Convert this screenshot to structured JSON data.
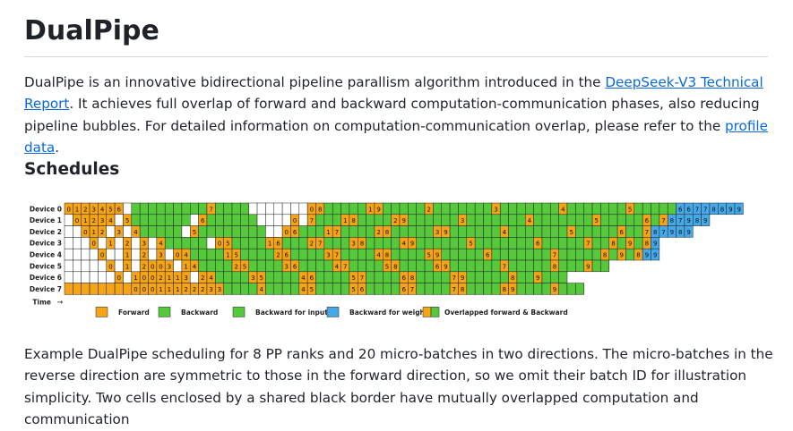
{
  "title": "DualPipe",
  "intro": {
    "text_before": "DualPipe is an innovative bidirectional pipeline parallism algorithm introduced in the ",
    "link_report": "DeepSeek-V3 Technical Report",
    "text_middle": ". It achieves full overlap of forward and backward computation-communication phases, also reducing pipeline bubbles. For detailed information on computation-communication overlap, please refer to the ",
    "link_profile": "profile data",
    "text_after": "."
  },
  "schedules_heading": "Schedules",
  "figure": {
    "devices": [
      "Device 0",
      "Device 1",
      "Device 2",
      "Device 3",
      "Device 4",
      "Device 5",
      "Device 6",
      "Device 7"
    ],
    "time_label": "Time",
    "time_arrow": "→",
    "legend": [
      {
        "label": "Forward",
        "kind": "F"
      },
      {
        "label": "Backward",
        "kind": "B"
      },
      {
        "label": "Backward for input",
        "kind": "I"
      },
      {
        "label": "Backward for weights",
        "kind": "W"
      },
      {
        "label": "Overlapped forward & Backward",
        "kind": "O"
      }
    ],
    "colors": {
      "F": "#f5a417",
      "B": "#55c93b",
      "I": "#55c93b",
      "W": "#45a8e8",
      "O": "#f5a417",
      "O2": "#55c93b",
      "empty": "#ffffff",
      "border": "#222222"
    },
    "schedule": [
      "F0 F1 F2 F3 F4 F5 F6 _ B B B B B B B B B F7 B B B B _ _ _ _ _ _ _ F0 F8 B B B B B F1 F9 B B B B B F2 B B B B B B B F3 B B B B B B B F4 B B B B B B B F5 B B B B B W6 W6 W7 W7 W8 W8 W9 W9",
      "_ F0 F1 F2 F3 F4 _ F5 B B B B B B B _ F6 B B B B B B _ _ _ _ F0 _ F7 B B B F1 F8 B B B B F2 F9 B B B B B B F3 B B B B B B B F4 B B B B B B B F5 B B B B B F6 B F7 W8 W7 W9 W8 W9",
      "_ _ F0 F1 F2 _ F3 _ F4 B B B B B _ F5 B B B B B B B B _ _ F0 F6 B B B F1 F7 B B B B F2 F8 B B B B B F3 F9 B B B B B B F4 B B B B B B B F5 B B B B B F6 B B F7 W8 W7 W9 W8 W9",
      "_ _ _ F0 _ F1 _ F2 _ F3 _ F4 B B B B B _ F0 F5 B B B B F1 F6 B B B F2 F7 B B B F3 F8 B B B B F4 F9 B B B B B B F5 B B B B B B B F6 B B B B B F7 B B F8 B F9 B F8 W9",
      "_ _ _ _ F0 _ _ F1 _ F2 _ F3 _ F0 F4 B B B B F1 F5 B B B B F2 F6 B B B B F3 F7 B B B B F4 F8 B B B B F5 F9 B B B B B F6 B B B B B B B F7 B B B B B F8 B F9 B F8 W9 W9",
      "_ _ _ _ _ F0 _ F1 _ F2 F0 F0 F3 _ F1 F4 B B B B F2 F5 B B B B F3 F6 B B B B F4 F7 B B B B F5 F8 B B B B F6 F9 B B B B B B F7 B B B B B F8 B B B F9 B B",
      "_ _ _ _ _ _ F0 _ F1 F0 F0 F2 F1 F1 F3 _ F2 F4 B B B B F3 F5 B B B B F4 F6 B B B B F5 F7 B B B B F6 F8 B B B B F7 F9 B B B B B F8 B B F9 B B B",
      "F F F F F F F F F0 F0 F0 F1 F1 F1 F2 F2 F2 F3 F3 B B B B F4 B B B B F4 F5 B B B B F5 F6 B B B B F6 F7 B B B B F7 F8 B B B B F8 F9 B B B B F9 B B B"
    ]
  },
  "caption": "Example DualPipe scheduling for 8 PP ranks and 20 micro-batches in two directions. The micro-batches in the reverse direction are symmetric to those in the forward direction, so we omit their batch ID for illustration simplicity. Two cells enclosed by a shared black border have mutually overlapped computation and communication"
}
